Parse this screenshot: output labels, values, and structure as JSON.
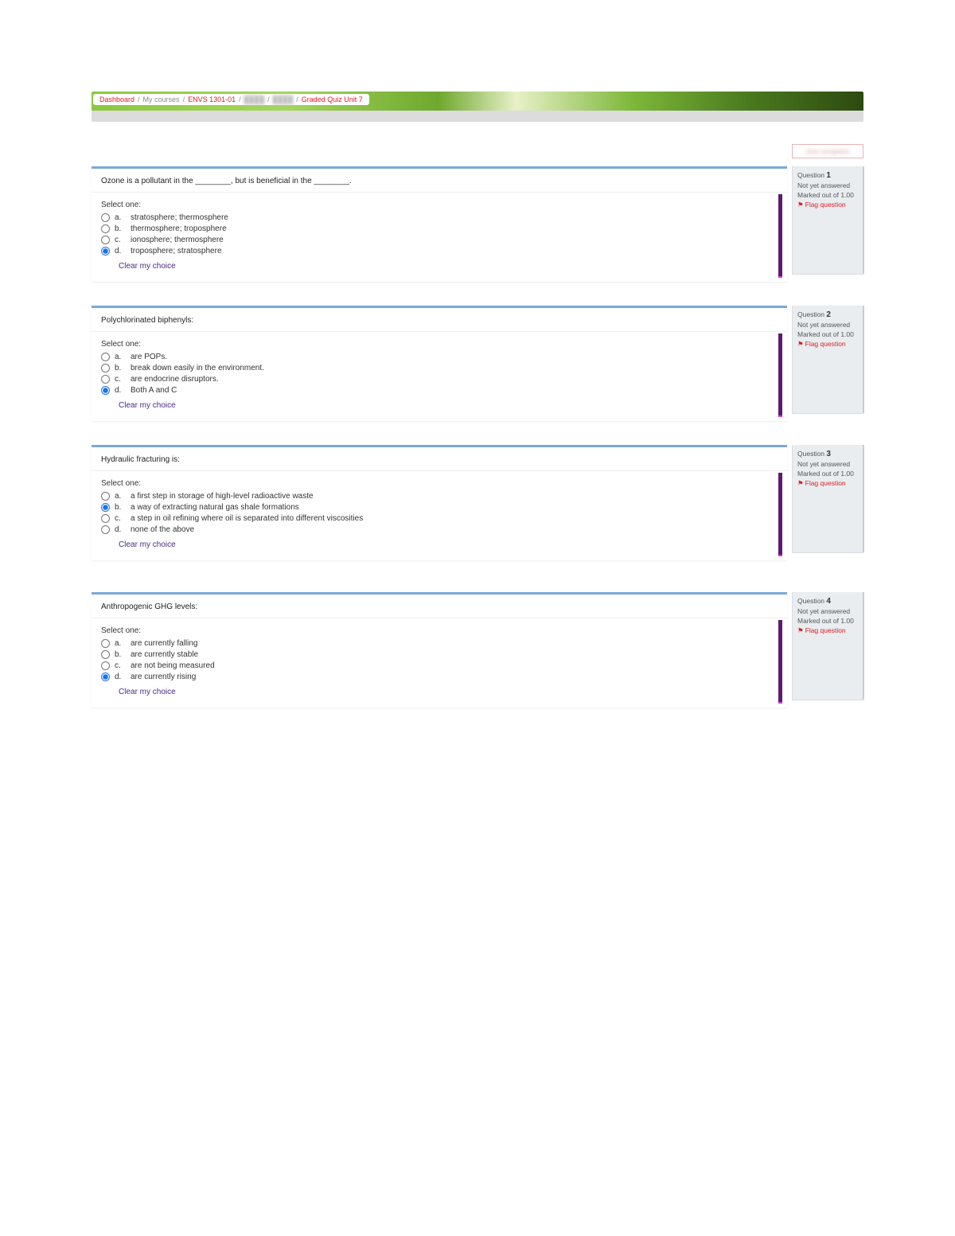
{
  "breadcrumb": {
    "items": [
      {
        "label": "Dashboard",
        "link": true
      },
      {
        "label": "My courses",
        "link": false,
        "muted": true
      },
      {
        "label": "ENVS 1301-01",
        "link": true
      },
      {
        "label": "redacted1",
        "blur": true
      },
      {
        "label": "redacted2",
        "blur": true
      },
      {
        "label": "Graded Quiz Unit 7",
        "link": true
      }
    ]
  },
  "labels": {
    "select_one": "Select one:",
    "clear_choice": "Clear my choice",
    "question_word": "Question",
    "not_answered": "Not yet answered",
    "marked_out": "Marked out of 1.00",
    "flag": "Flag question",
    "flag_icon": "⚑"
  },
  "colors": {
    "card_border_top": "#7aa8d9",
    "info_bg": "#e9edf0",
    "stripe": "#5e1a6e",
    "stripe_bottom": "#d638d6",
    "link_red": "#e31b23",
    "clear_link": "#4a2a8a"
  },
  "questions": [
    {
      "number": "1",
      "text": "Ozone is a pollutant in the ________, but is beneficial in the ________.",
      "options": [
        {
          "letter": "a.",
          "text": "stratosphere; thermosphere",
          "selected": false
        },
        {
          "letter": "b.",
          "text": "thermosphere; troposphere",
          "selected": false
        },
        {
          "letter": "c.",
          "text": "ionosphere; thermosphere",
          "selected": false
        },
        {
          "letter": "d.",
          "text": "troposphere; stratosphere",
          "selected": true
        }
      ]
    },
    {
      "number": "2",
      "text": "Polychlorinated biphenyls:",
      "options": [
        {
          "letter": "a.",
          "text": "are POPs.",
          "selected": false
        },
        {
          "letter": "b.",
          "text": "break down easily in the environment.",
          "selected": false
        },
        {
          "letter": "c.",
          "text": "are endocrine disruptors.",
          "selected": false
        },
        {
          "letter": "d.",
          "text": "Both A and C",
          "selected": true
        }
      ]
    },
    {
      "number": "3",
      "text": "Hydraulic fracturing is:",
      "options": [
        {
          "letter": "a.",
          "text": "a first step in storage of high-level radioactive waste",
          "selected": false
        },
        {
          "letter": "b.",
          "text": "a way of extracting natural gas shale formations",
          "selected": true
        },
        {
          "letter": "c.",
          "text": "a step in oil refining where oil is separated into different viscosities",
          "selected": false
        },
        {
          "letter": "d.",
          "text": "none of the above",
          "selected": false
        }
      ]
    },
    {
      "number": "4",
      "text": "Anthropogenic GHG levels:",
      "options": [
        {
          "letter": "a.",
          "text": "are currently falling",
          "selected": false
        },
        {
          "letter": "b.",
          "text": "are currently stable",
          "selected": false
        },
        {
          "letter": "c.",
          "text": "are not being measured",
          "selected": false
        },
        {
          "letter": "d.",
          "text": "are currently rising",
          "selected": true
        }
      ]
    }
  ]
}
